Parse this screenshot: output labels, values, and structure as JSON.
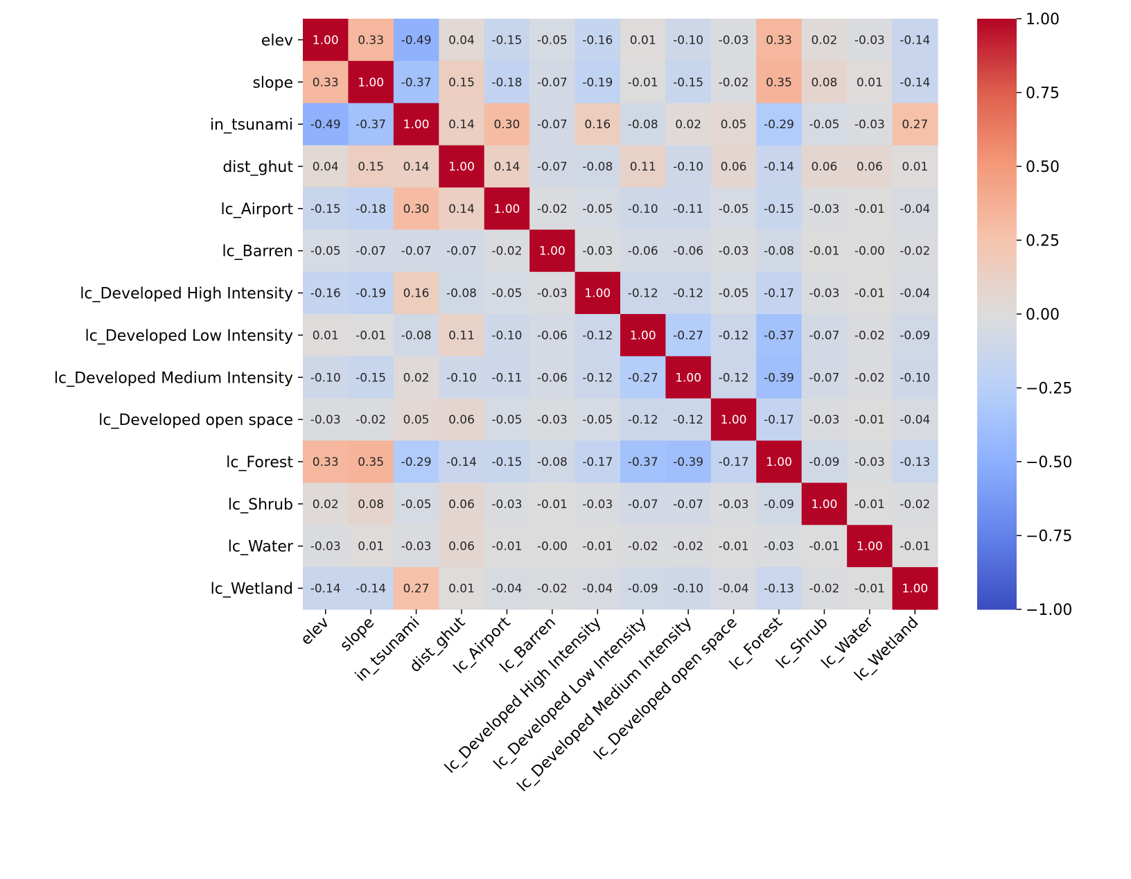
{
  "chart_data": {
    "type": "heatmap",
    "title": "",
    "xlabel": "",
    "ylabel": "",
    "colormap": "coolwarm",
    "vmin": -1.0,
    "vmax": 1.0,
    "annotation_format": "0.00",
    "labels": [
      "elev",
      "slope",
      "in_tsunami",
      "dist_ghut",
      "lc_Airport",
      "lc_Barren",
      "lc_Developed High Intensity",
      "lc_Developed Low Intensity",
      "lc_Developed Medium Intensity",
      "lc_Developed open space",
      "lc_Forest",
      "lc_Shrub",
      "lc_Water",
      "lc_Wetland"
    ],
    "matrix": [
      [
        1.0,
        0.33,
        -0.49,
        0.04,
        -0.15,
        -0.05,
        -0.16,
        0.01,
        -0.1,
        -0.03,
        0.33,
        0.02,
        -0.03,
        -0.14
      ],
      [
        0.33,
        1.0,
        -0.37,
        0.15,
        -0.18,
        -0.07,
        -0.19,
        -0.01,
        -0.15,
        -0.02,
        0.35,
        0.08,
        0.01,
        -0.14
      ],
      [
        -0.49,
        -0.37,
        1.0,
        0.14,
        0.3,
        -0.07,
        0.16,
        -0.08,
        0.02,
        0.05,
        -0.29,
        -0.05,
        -0.03,
        0.27
      ],
      [
        0.04,
        0.15,
        0.14,
        1.0,
        0.14,
        -0.07,
        -0.08,
        0.11,
        -0.1,
        0.06,
        -0.14,
        0.06,
        0.06,
        0.01
      ],
      [
        -0.15,
        -0.18,
        0.3,
        0.14,
        1.0,
        -0.02,
        -0.05,
        -0.1,
        -0.11,
        -0.05,
        -0.15,
        -0.03,
        -0.01,
        -0.04
      ],
      [
        -0.05,
        -0.07,
        -0.07,
        -0.07,
        -0.02,
        1.0,
        -0.03,
        -0.06,
        -0.06,
        -0.03,
        -0.08,
        -0.01,
        -0.0,
        -0.02
      ],
      [
        -0.16,
        -0.19,
        0.16,
        -0.08,
        -0.05,
        -0.03,
        1.0,
        -0.12,
        -0.12,
        -0.05,
        -0.17,
        -0.03,
        -0.01,
        -0.04
      ],
      [
        0.01,
        -0.01,
        -0.08,
        0.11,
        -0.1,
        -0.06,
        -0.12,
        1.0,
        -0.27,
        -0.12,
        -0.37,
        -0.07,
        -0.02,
        -0.09
      ],
      [
        -0.1,
        -0.15,
        0.02,
        -0.1,
        -0.11,
        -0.06,
        -0.12,
        -0.27,
        1.0,
        -0.12,
        -0.39,
        -0.07,
        -0.02,
        -0.1
      ],
      [
        -0.03,
        -0.02,
        0.05,
        0.06,
        -0.05,
        -0.03,
        -0.05,
        -0.12,
        -0.12,
        1.0,
        -0.17,
        -0.03,
        -0.01,
        -0.04
      ],
      [
        0.33,
        0.35,
        -0.29,
        -0.14,
        -0.15,
        -0.08,
        -0.17,
        -0.37,
        -0.39,
        -0.17,
        1.0,
        -0.09,
        -0.03,
        -0.13
      ],
      [
        0.02,
        0.08,
        -0.05,
        0.06,
        -0.03,
        -0.01,
        -0.03,
        -0.07,
        -0.07,
        -0.03,
        -0.09,
        1.0,
        -0.01,
        -0.02
      ],
      [
        -0.03,
        0.01,
        -0.03,
        0.06,
        -0.01,
        -0.0,
        -0.01,
        -0.02,
        -0.02,
        -0.01,
        -0.03,
        -0.01,
        1.0,
        -0.01
      ],
      [
        -0.14,
        -0.14,
        0.27,
        0.01,
        -0.04,
        -0.02,
        -0.04,
        -0.09,
        -0.1,
        -0.04,
        -0.13,
        -0.02,
        -0.01,
        1.0
      ]
    ],
    "colorbar": {
      "ticks": [
        1.0,
        0.75,
        0.5,
        0.25,
        0.0,
        -0.25,
        -0.5,
        -0.75,
        -1.0
      ],
      "tick_labels": [
        "1.00",
        "0.75",
        "0.50",
        "0.25",
        "0.00",
        "−0.25",
        "−0.50",
        "−0.75",
        "−1.00"
      ]
    }
  }
}
